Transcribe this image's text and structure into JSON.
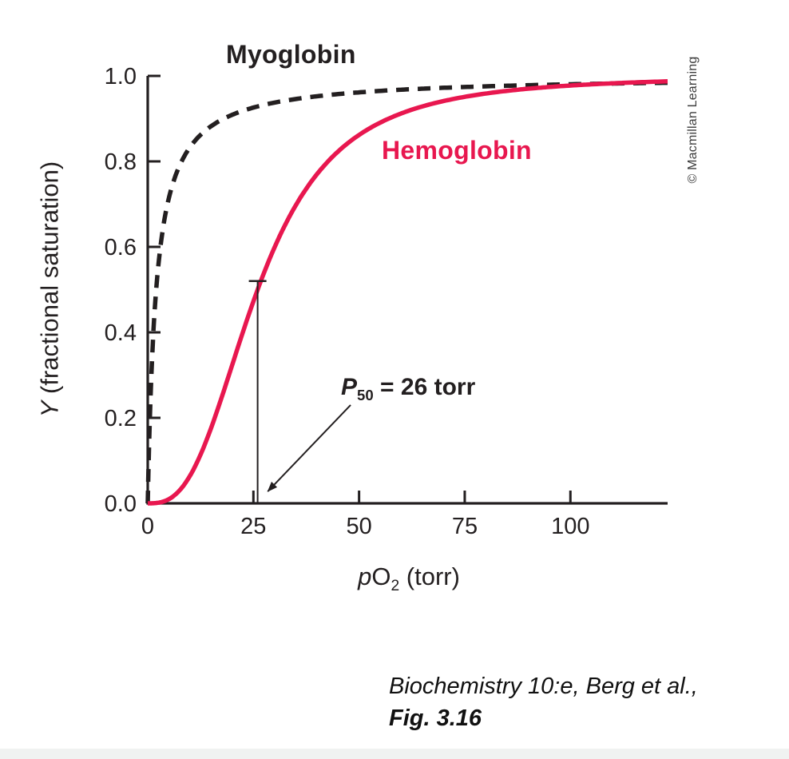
{
  "figure": {
    "curve_labels": {
      "myoglobin": "Myoglobin",
      "hemoglobin": "Hemoglobin"
    },
    "p50_annotation": {
      "p": "P",
      "sub": "50",
      "rest": " = 26 torr"
    },
    "ylabel": {
      "italic": "Y",
      "rest": " (fractional saturation)"
    },
    "xlabel": {
      "italic": "p",
      "main": "O",
      "sub": "2",
      "rest": " (torr)"
    },
    "copyright": "© Macmillan Learning",
    "caption": {
      "line1": "Biochemistry 10:e, Berg et al.,",
      "line2": "Fig. 3.16"
    }
  },
  "chart_data": {
    "type": "line",
    "title": "",
    "xlabel": "pO2 (torr)",
    "ylabel": "Y (fractional saturation)",
    "xlim": [
      0,
      123
    ],
    "ylim": [
      0,
      1.0
    ],
    "grid": false,
    "axis_color": "#231f20",
    "x_ticks": [
      {
        "value": 0,
        "label": "0"
      },
      {
        "value": 25,
        "label": "25"
      },
      {
        "value": 50,
        "label": "50"
      },
      {
        "value": 75,
        "label": "75"
      },
      {
        "value": 100,
        "label": "100"
      }
    ],
    "y_ticks": [
      {
        "value": 0.0,
        "label": "0.0"
      },
      {
        "value": 0.2,
        "label": "0.2"
      },
      {
        "value": 0.4,
        "label": "0.4"
      },
      {
        "value": 0.6,
        "label": "0.6"
      },
      {
        "value": 0.8,
        "label": "0.8"
      },
      {
        "value": 1.0,
        "label": "1.0"
      }
    ],
    "series": [
      {
        "name": "Myoglobin",
        "color": "#231f20",
        "style": "dashed",
        "model": {
          "type": "hill",
          "p50": 2,
          "n": 1
        },
        "points": {
          "x": [
            0,
            1,
            2,
            3,
            5,
            10,
            15,
            20,
            30,
            40,
            60,
            80,
            100,
            120
          ],
          "y": [
            0,
            0.33,
            0.5,
            0.6,
            0.71,
            0.83,
            0.88,
            0.91,
            0.94,
            0.95,
            0.97,
            0.98,
            0.98,
            0.98
          ]
        }
      },
      {
        "name": "Hemoglobin",
        "color": "#e8174f",
        "style": "solid",
        "model": {
          "type": "hill",
          "p50": 26,
          "n": 2.8
        },
        "points": {
          "x": [
            0,
            5,
            10,
            15,
            20,
            26,
            30,
            40,
            50,
            60,
            80,
            100,
            120
          ],
          "y": [
            0,
            0.01,
            0.06,
            0.18,
            0.32,
            0.5,
            0.6,
            0.77,
            0.86,
            0.91,
            0.96,
            0.98,
            0.99
          ]
        }
      }
    ],
    "p50_marker": {
      "x": 26,
      "y_top": 0.52,
      "value_torr": 26
    },
    "annotation_arrow": {
      "from": {
        "x": 48,
        "y": 0.23
      },
      "to": {
        "x": 28.4,
        "y": 0.028
      }
    }
  }
}
